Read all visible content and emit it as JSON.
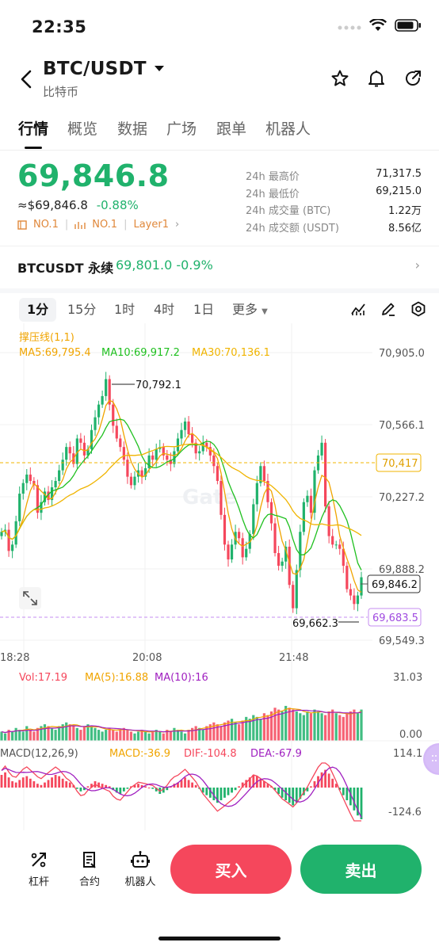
{
  "status": {
    "time": "22:35"
  },
  "header": {
    "pair": "BTC/USDT",
    "subtitle": "比特币"
  },
  "tabs": [
    "行情",
    "概览",
    "数据",
    "广场",
    "跟单",
    "机器人"
  ],
  "price": {
    "last": "69,846.8",
    "fiat": "≈$69,846.8",
    "change": "-0.88%",
    "tags": [
      "NO.1",
      "NO.1",
      "Layer1"
    ]
  },
  "stats": [
    {
      "label": "24h 最高价",
      "value": "71,317.5"
    },
    {
      "label": "24h 最低价",
      "value": "69,215.0"
    },
    {
      "label": "24h 成交量 (BTC)",
      "value": "1.22万"
    },
    {
      "label": "24h 成交额 (USDT)",
      "value": "8.56亿"
    }
  ],
  "perp": {
    "name": "BTCUSDT 永续",
    "value": "69,801.0",
    "change": "-0.9%"
  },
  "timeframes": {
    "items": [
      "1分",
      "15分",
      "1时",
      "4时",
      "1日"
    ],
    "more": "更多",
    "active": "1分"
  },
  "chart_data": {
    "type": "candlestick",
    "indicator_label": "撑压线(1,1)",
    "ma_labels": [
      "MA5:69,795.4",
      "MA10:69,917.2",
      "MA30:70,136.1"
    ],
    "y_ticks": [
      "70,905.0",
      "70,566.1",
      "70,227.2",
      "69,888.2",
      "69,549.3"
    ],
    "x_ticks": [
      "18:28",
      "20:08",
      "21:48"
    ],
    "high_label": "70,792.1",
    "low_label": "69,662.3",
    "last_tag": "69,846.2",
    "resistance_tag": "70,417",
    "support_tag": "69,683.5",
    "watermark": "Gate",
    "colors": {
      "up": "#20b26c",
      "down": "#f5475c",
      "ma5": "#f0a400",
      "ma10": "#20c020",
      "ma30": "#f0b400"
    },
    "volume": {
      "labels": [
        "Vol:17.19",
        "MA(5):16.88",
        "MA(10):16"
      ],
      "ticks": [
        "31.03",
        "0.00"
      ]
    },
    "macd": {
      "labels": [
        "MACD(12,26,9)",
        "MACD:-36.9",
        "DIF:-104.8",
        "DEA:-67.9"
      ],
      "ticks": [
        "114.1",
        "-124.6"
      ]
    },
    "close_path": [
      70060,
      70070,
      69970,
      70000,
      70110,
      70240,
      70290,
      70330,
      70300,
      70280,
      70150,
      70200,
      70250,
      70210,
      70270,
      70300,
      70350,
      70400,
      70460,
      70430,
      70380,
      70500,
      70480,
      70420,
      70450,
      70540,
      70600,
      70660,
      70700,
      70780,
      70660,
      70560,
      70500,
      70460,
      70400,
      70320,
      70280,
      70320,
      70350,
      70320,
      70360,
      70420,
      70400,
      70450,
      70460,
      70420,
      70400,
      70380,
      70440,
      70500,
      70540,
      70580,
      70520,
      70480,
      70430,
      70440,
      70480,
      70460,
      70420,
      70370,
      70300,
      70140,
      70000,
      69930,
      70000,
      70060,
      70030,
      69940,
      69980,
      70050,
      70190,
      70290,
      70370,
      70300,
      70200,
      70100,
      69960,
      69900,
      69920,
      69990,
      69810,
      69700,
      69880,
      70060,
      70200,
      70230,
      70150,
      70350,
      70420,
      70480,
      70180,
      70040,
      70000,
      70000,
      69980,
      69900,
      69790,
      69760,
      69720,
      69760,
      69846
    ],
    "vol_path": [
      5,
      4,
      6,
      5,
      7,
      6,
      5,
      8,
      6,
      5,
      7,
      8,
      9,
      8,
      7,
      6,
      8,
      9,
      10,
      9,
      8,
      7,
      6,
      8,
      9,
      8,
      7,
      6,
      5,
      6,
      7,
      6,
      5,
      6,
      7,
      6,
      5,
      4,
      5,
      6,
      5,
      4,
      5,
      6,
      5,
      4,
      6,
      5,
      7,
      6,
      5,
      4,
      6,
      7,
      8,
      7,
      6,
      8,
      9,
      10,
      9,
      8,
      10,
      11,
      12,
      10,
      9,
      11,
      13,
      12,
      14,
      13,
      12,
      15,
      14,
      16,
      18,
      17,
      16,
      19,
      18,
      17,
      16,
      15,
      14,
      16,
      15,
      17,
      16,
      15,
      14,
      16,
      17,
      15,
      14,
      13,
      15,
      16,
      17,
      15,
      17
    ],
    "macd_hist": [
      10,
      12,
      8,
      5,
      4,
      6,
      8,
      9,
      7,
      5,
      3,
      2,
      4,
      6,
      8,
      10,
      9,
      7,
      5,
      4,
      2,
      -1,
      -3,
      -2,
      1,
      3,
      5,
      4,
      3,
      2,
      1,
      -2,
      -4,
      -5,
      -3,
      -1,
      1,
      2,
      3,
      2,
      1,
      0,
      -1,
      -3,
      -5,
      -4,
      -2,
      1,
      3,
      4,
      6,
      8,
      6,
      4,
      2,
      -1,
      -4,
      -6,
      -8,
      -10,
      -12,
      -10,
      -8,
      -6,
      -4,
      -2,
      1,
      4,
      6,
      8,
      10,
      9,
      7,
      5,
      3,
      1,
      -2,
      -5,
      -8,
      -10,
      -12,
      -14,
      -12,
      -9,
      -6,
      -3,
      1,
      5,
      9,
      12,
      14,
      11,
      7,
      3,
      -2,
      -6,
      -10,
      -14,
      -18,
      -22,
      -25
    ]
  },
  "bottom": {
    "items": [
      "杠杆",
      "合约",
      "机器人"
    ],
    "buy": "买入",
    "sell": "卖出"
  }
}
